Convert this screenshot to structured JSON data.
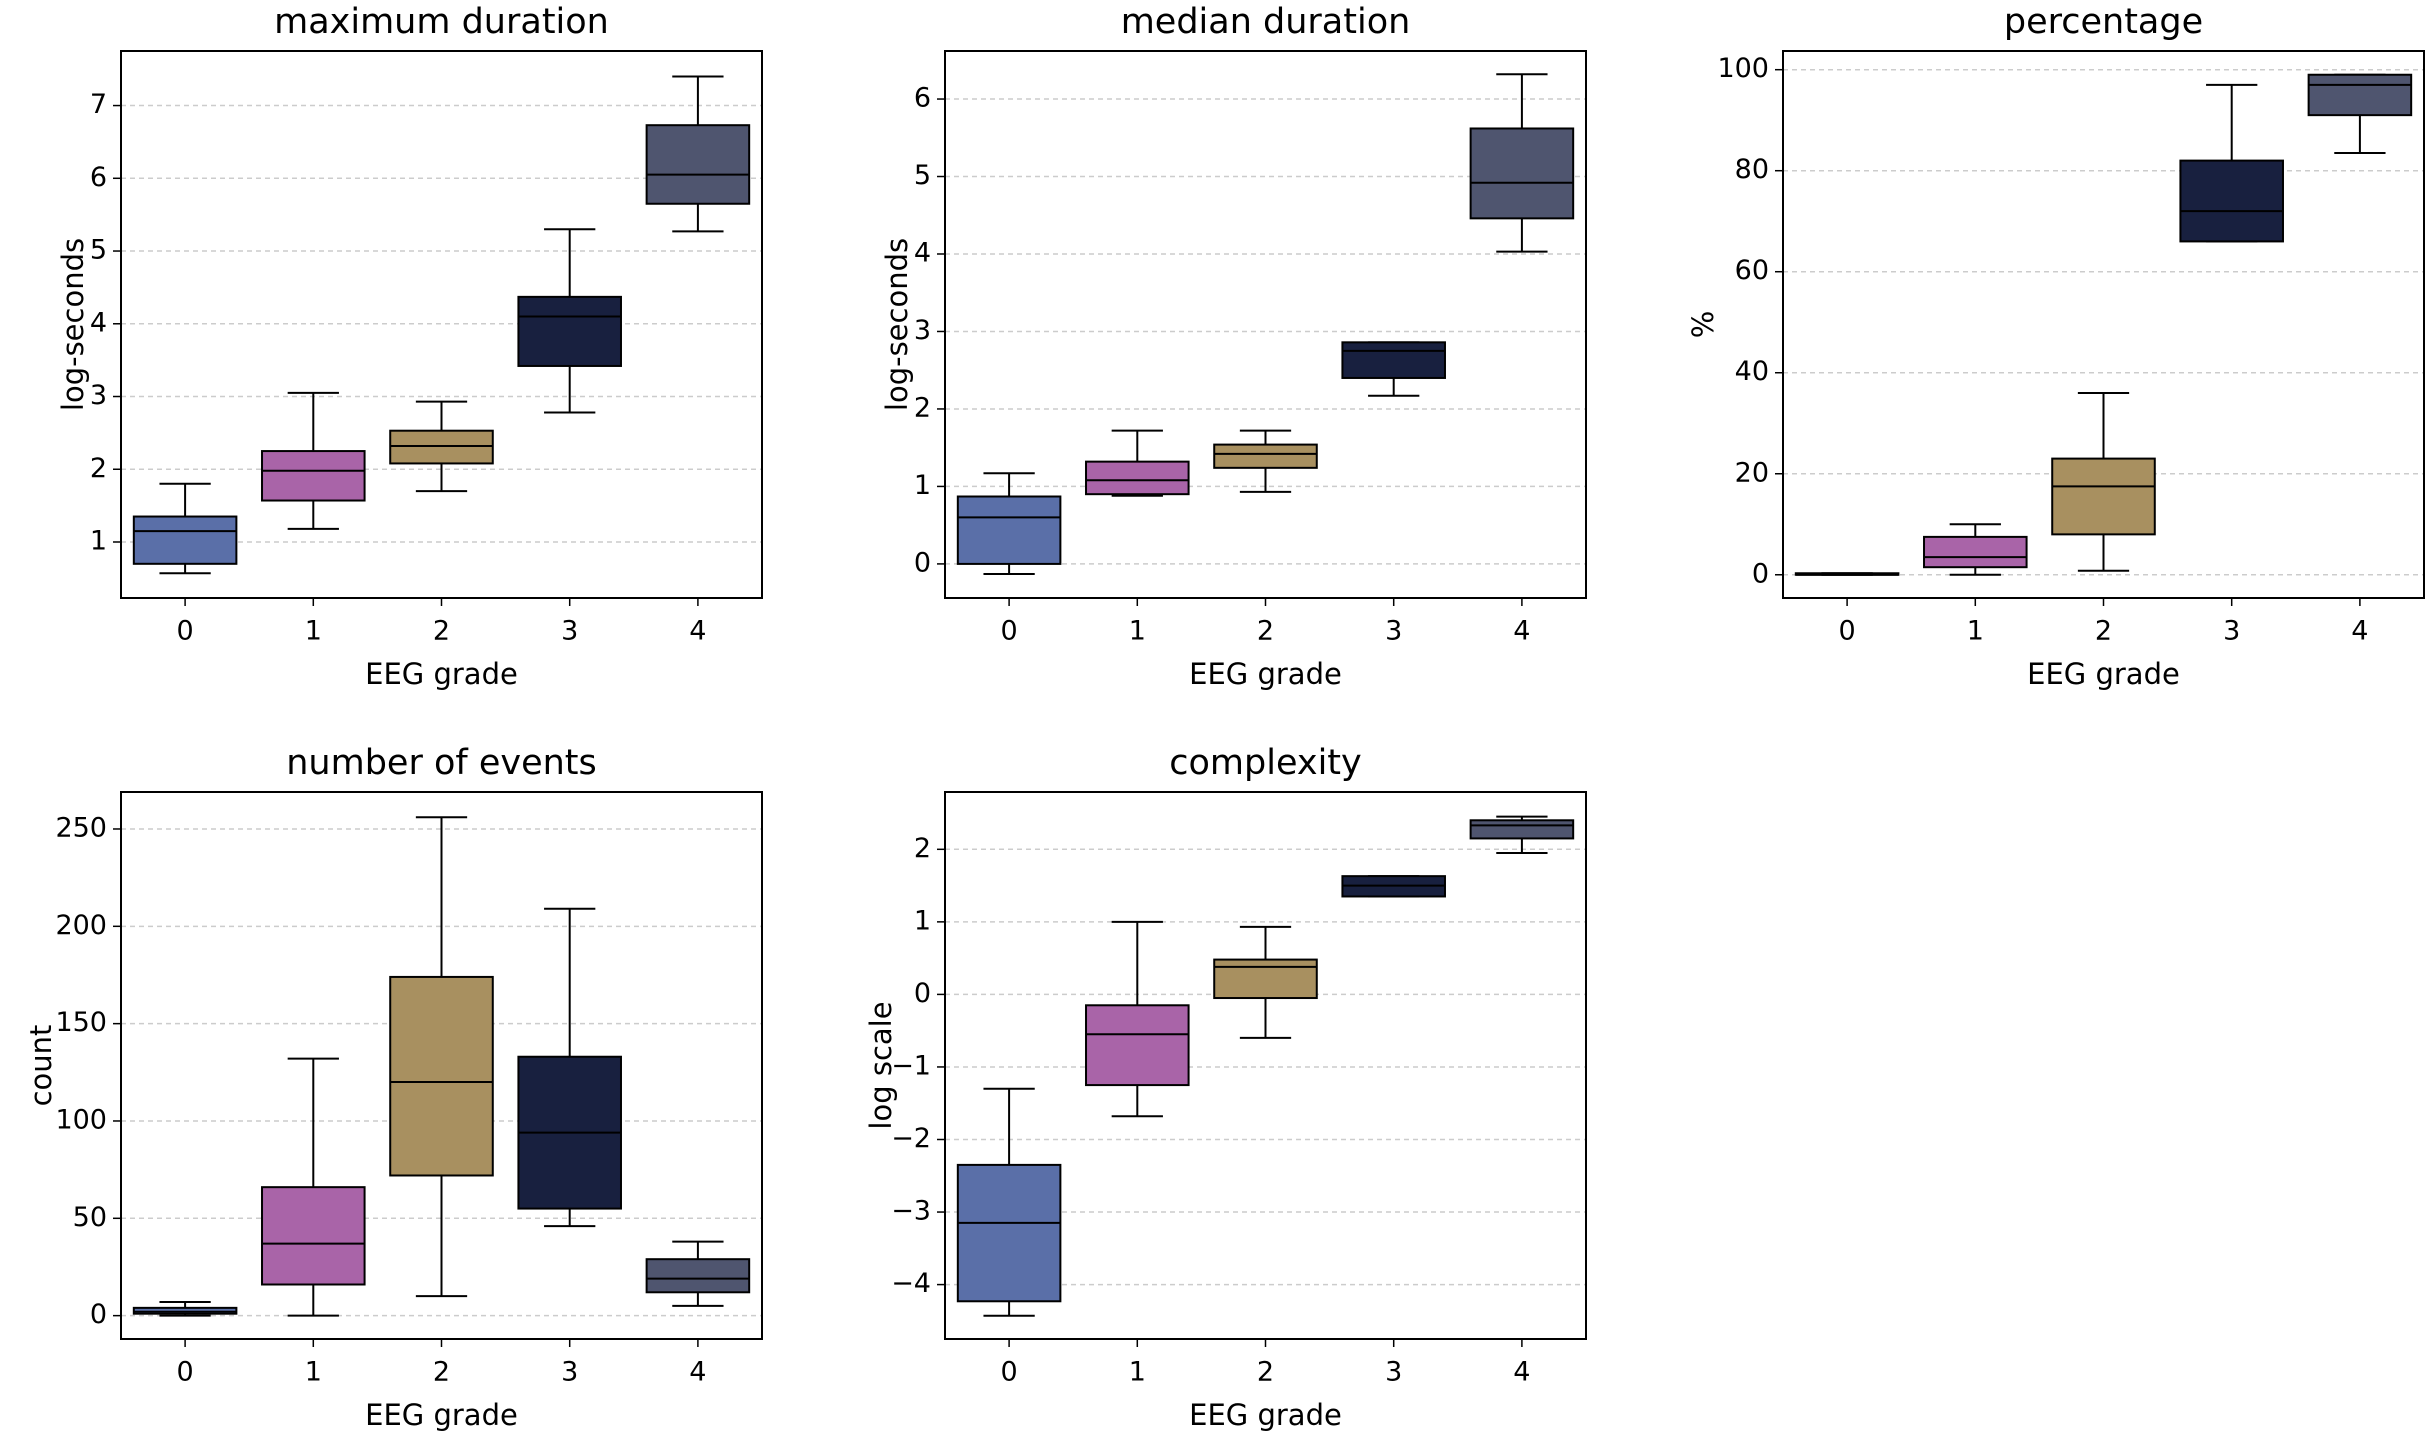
{
  "chart_data": [
    {
      "type": "box",
      "title": "maximum duration",
      "xlabel": "EEG grade",
      "ylabel": "log-seconds",
      "categories": [
        "0",
        "1",
        "2",
        "3",
        "4"
      ],
      "colors": [
        "#5a6fa8",
        "#a964a8",
        "#a89060",
        "#18203f",
        "#4f556f"
      ],
      "stats": [
        {
          "whislo": 0.57,
          "q1": 0.7,
          "med": 1.15,
          "q3": 1.35,
          "whishi": 1.8
        },
        {
          "whislo": 1.18,
          "q1": 1.57,
          "med": 1.98,
          "q3": 2.25,
          "whishi": 3.05
        },
        {
          "whislo": 1.7,
          "q1": 2.08,
          "med": 2.32,
          "q3": 2.53,
          "whishi": 2.93
        },
        {
          "whislo": 2.78,
          "q1": 3.42,
          "med": 4.1,
          "q3": 4.37,
          "whishi": 5.3
        },
        {
          "whislo": 5.27,
          "q1": 5.65,
          "med": 6.05,
          "q3": 6.73,
          "whishi": 7.4
        }
      ],
      "ylim": [
        0.23,
        7.75
      ],
      "yticks": [
        1,
        2,
        3,
        4,
        5,
        6,
        7
      ],
      "grid": true
    },
    {
      "type": "box",
      "title": "median duration",
      "xlabel": "EEG grade",
      "ylabel": "log-seconds",
      "categories": [
        "0",
        "1",
        "2",
        "3",
        "4"
      ],
      "colors": [
        "#5a6fa8",
        "#a964a8",
        "#a89060",
        "#18203f",
        "#4f556f"
      ],
      "stats": [
        {
          "whislo": -0.13,
          "q1": 0.0,
          "med": 0.6,
          "q3": 0.87,
          "whishi": 1.17
        },
        {
          "whislo": 0.88,
          "q1": 0.9,
          "med": 1.08,
          "q3": 1.32,
          "whishi": 1.72
        },
        {
          "whislo": 0.93,
          "q1": 1.24,
          "med": 1.42,
          "q3": 1.54,
          "whishi": 1.72
        },
        {
          "whislo": 2.17,
          "q1": 2.4,
          "med": 2.75,
          "q3": 2.86,
          "whishi": 2.86
        },
        {
          "whislo": 4.03,
          "q1": 4.46,
          "med": 4.92,
          "q3": 5.62,
          "whishi": 6.32
        }
      ],
      "ylim": [
        -0.44,
        6.62
      ],
      "yticks": [
        0,
        1,
        2,
        3,
        4,
        5,
        6
      ],
      "grid": true
    },
    {
      "type": "box",
      "title": "percentage",
      "xlabel": "EEG grade",
      "ylabel": "%",
      "categories": [
        "0",
        "1",
        "2",
        "3",
        "4"
      ],
      "colors": [
        "#5a6fa8",
        "#a964a8",
        "#a89060",
        "#18203f",
        "#4f556f"
      ],
      "stats": [
        {
          "whislo": 0,
          "q1": 0,
          "med": 0,
          "q3": 0.3,
          "whishi": 0.3
        },
        {
          "whislo": 0,
          "q1": 1.5,
          "med": 3.5,
          "q3": 7.5,
          "whishi": 10
        },
        {
          "whislo": 0.8,
          "q1": 8,
          "med": 17.5,
          "q3": 23,
          "whishi": 36
        },
        {
          "whislo": 66,
          "q1": 66,
          "med": 72,
          "q3": 82,
          "whishi": 97
        },
        {
          "whislo": 83.5,
          "q1": 91,
          "med": 97,
          "q3": 99,
          "whishi": 99
        }
      ],
      "ylim": [
        -4.6,
        103.7
      ],
      "yticks": [
        0,
        20,
        40,
        60,
        80,
        100
      ],
      "grid": true
    },
    {
      "type": "box",
      "title": "number of events",
      "xlabel": "EEG grade",
      "ylabel": "count",
      "categories": [
        "0",
        "1",
        "2",
        "3",
        "4"
      ],
      "colors": [
        "#5a6fa8",
        "#a964a8",
        "#a89060",
        "#18203f",
        "#4f556f"
      ],
      "stats": [
        {
          "whislo": 0,
          "q1": 1,
          "med": 2,
          "q3": 4,
          "whishi": 7
        },
        {
          "whislo": 0,
          "q1": 16,
          "med": 37,
          "q3": 66,
          "whishi": 132
        },
        {
          "whislo": 10,
          "q1": 72,
          "med": 120,
          "q3": 174,
          "whishi": 256
        },
        {
          "whislo": 46,
          "q1": 55,
          "med": 94,
          "q3": 133,
          "whishi": 209
        },
        {
          "whislo": 5,
          "q1": 12,
          "med": 19,
          "q3": 29,
          "whishi": 38
        }
      ],
      "ylim": [
        -12,
        269
      ],
      "yticks": [
        0,
        50,
        100,
        150,
        200,
        250
      ],
      "grid": true
    },
    {
      "type": "box",
      "title": "complexity",
      "xlabel": "EEG grade",
      "ylabel": "log scale",
      "categories": [
        "0",
        "1",
        "2",
        "3",
        "4"
      ],
      "colors": [
        "#5a6fa8",
        "#a964a8",
        "#a89060",
        "#18203f",
        "#4f556f"
      ],
      "stats": [
        {
          "whislo": -4.43,
          "q1": -4.23,
          "med": -3.15,
          "q3": -2.35,
          "whishi": -1.3
        },
        {
          "whislo": -1.68,
          "q1": -1.25,
          "med": -0.55,
          "q3": -0.15,
          "whishi": 1.0
        },
        {
          "whislo": -0.6,
          "q1": -0.05,
          "med": 0.38,
          "q3": 0.48,
          "whishi": 0.93
        },
        {
          "whislo": 1.35,
          "q1": 1.35,
          "med": 1.5,
          "q3": 1.63,
          "whishi": 1.63
        },
        {
          "whislo": 1.95,
          "q1": 2.15,
          "med": 2.33,
          "q3": 2.4,
          "whishi": 2.45
        }
      ],
      "ylim": [
        -4.75,
        2.79
      ],
      "yticks": [
        {
          "value": -4,
          "label": "−4"
        },
        {
          "value": -3,
          "label": "−3"
        },
        {
          "value": -2,
          "label": "−2"
        },
        {
          "value": -1,
          "label": "−1"
        },
        0,
        1,
        2
      ],
      "grid": true
    }
  ]
}
